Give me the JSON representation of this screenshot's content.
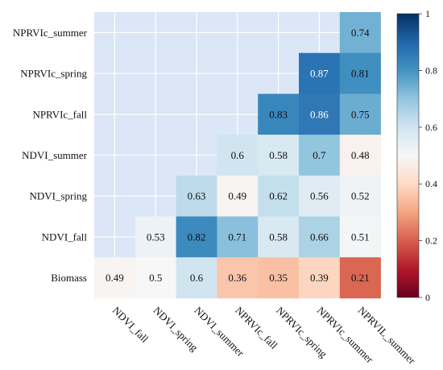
{
  "chart_data": {
    "type": "heatmap",
    "title": "",
    "xlabel": "",
    "ylabel": "",
    "x_categories": [
      "NDVI_fall",
      "NDVI_spring",
      "NDVI_summer",
      "NPRVIc_fall",
      "NPRVIc_spring",
      "NPRVIc_summer",
      "NPRVIL_summer"
    ],
    "y_categories": [
      "NPRVIc_summer",
      "NPRVIc_spring",
      "NPRVIc_fall",
      "NDVI_summer",
      "NDVI_spring",
      "NDVI_fall",
      "Biomass"
    ],
    "values": [
      [
        null,
        null,
        null,
        null,
        null,
        null,
        0.74
      ],
      [
        null,
        null,
        null,
        null,
        null,
        0.87,
        0.81
      ],
      [
        null,
        null,
        null,
        null,
        0.83,
        0.86,
        0.75
      ],
      [
        null,
        null,
        null,
        0.6,
        0.58,
        0.7,
        0.48
      ],
      [
        null,
        null,
        0.63,
        0.49,
        0.62,
        0.56,
        0.52
      ],
      [
        null,
        0.53,
        0.82,
        0.71,
        0.58,
        0.66,
        0.51
      ],
      [
        0.49,
        0.5,
        0.6,
        0.36,
        0.35,
        0.39,
        0.21
      ]
    ],
    "value_labels": [
      [
        null,
        null,
        null,
        null,
        null,
        null,
        "0.74"
      ],
      [
        null,
        null,
        null,
        null,
        null,
        "0.87",
        "0.81"
      ],
      [
        null,
        null,
        null,
        null,
        "0.83",
        "0.86",
        "0.75"
      ],
      [
        null,
        null,
        null,
        "0.6",
        "0.58",
        "0.7",
        "0.48"
      ],
      [
        null,
        null,
        "0.63",
        "0.49",
        "0.62",
        "0.56",
        "0.52"
      ],
      [
        null,
        "0.53",
        "0.82",
        "0.71",
        "0.58",
        "0.66",
        "0.51"
      ],
      [
        "0.49",
        "0.5",
        "0.6",
        "0.36",
        "0.35",
        "0.39",
        "0.21"
      ]
    ],
    "colorbar": {
      "min": 0,
      "max": 1,
      "ticks": [
        "0",
        "0.2",
        "0.4",
        "0.6",
        "0.8",
        "1"
      ]
    },
    "colormap": "RdBu",
    "background_color": "#dbe7f6",
    "grid": true
  }
}
